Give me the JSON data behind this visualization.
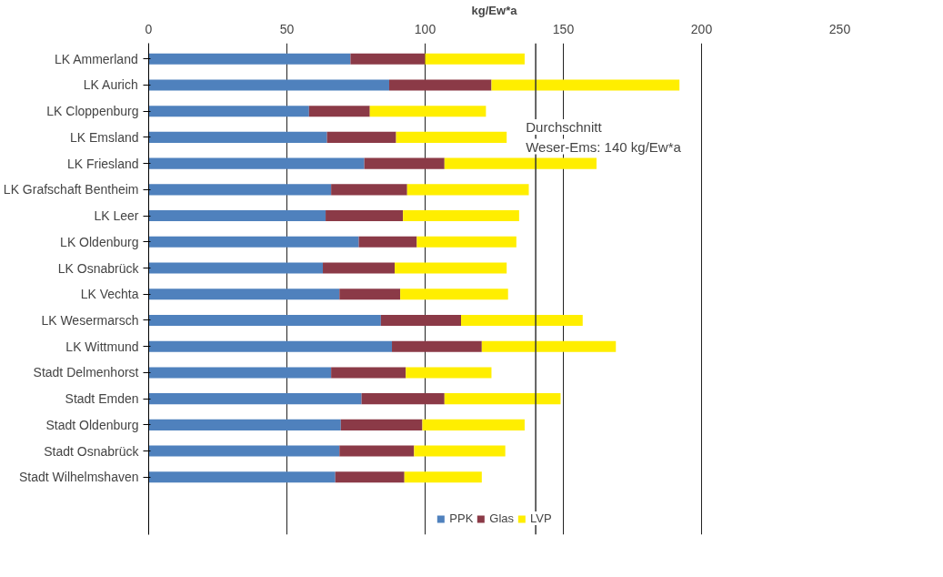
{
  "chart_data": {
    "type": "bar",
    "orientation": "horizontal",
    "stacked": true,
    "xlabel": "kg/Ew*a",
    "categories": [
      "LK Ammerland",
      "LK Aurich",
      "LK Cloppenburg",
      "LK Emsland",
      "LK Friesland",
      "LK Grafschaft Bentheim",
      "LK Leer",
      "LK Oldenburg",
      "LK Osnabrück",
      "LK Vechta",
      "LK Wesermarsch",
      "LK Wittmund",
      "Stadt Delmenhorst",
      "Stadt Emden",
      "Stadt Oldenburg",
      "Stadt Osnabrück",
      "Stadt Wilhelmshaven"
    ],
    "series": [
      {
        "name": "PPK",
        "color": "#4f81bd",
        "values": [
          73,
          87,
          58,
          64.5,
          78,
          66,
          64,
          76,
          63,
          69,
          84,
          88,
          66,
          77,
          69.5,
          69,
          67.5
        ]
      },
      {
        "name": "Glas",
        "color": "#8b3a47",
        "values": [
          27,
          37,
          22,
          25,
          29,
          27.5,
          28,
          21,
          26,
          22,
          29,
          32.5,
          27,
          30,
          29.5,
          27,
          25
        ]
      },
      {
        "name": "LVP",
        "color": "#ffee00",
        "values": [
          36,
          68,
          42,
          40,
          55,
          44,
          42,
          36,
          40.5,
          39,
          44,
          48.5,
          31,
          42,
          37,
          33,
          28
        ]
      }
    ],
    "xlim": [
      0,
      250
    ],
    "xticks": [
      0,
      50,
      100,
      150,
      200,
      250
    ],
    "grid": "x",
    "legend": "bottom",
    "ref_lines": [
      {
        "axis": "x",
        "value": 140,
        "label": "Durchschnitt\nWeser-Ems: 140 kg/Ew*a",
        "color": "#333333"
      }
    ]
  }
}
